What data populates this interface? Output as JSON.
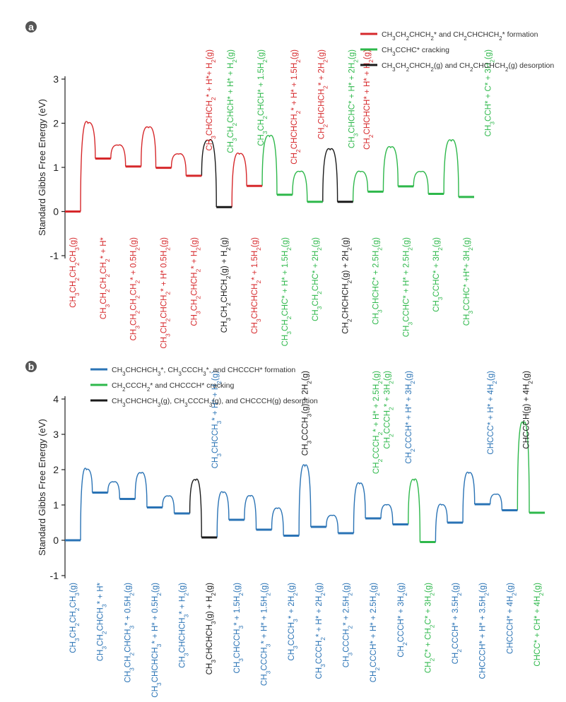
{
  "colors": {
    "red": "#d6282b",
    "green": "#2eb84b",
    "black": "#1a1a1a",
    "blue": "#2a73b5",
    "axis": "#222222"
  },
  "chart_data": [
    {
      "type": "line",
      "panel_label": "a",
      "ylabel": "Standard Gibbs Free Energy (eV)",
      "ylim": [
        -1,
        3
      ],
      "yticks": [
        "-1",
        "0",
        "1",
        "2",
        "3"
      ],
      "legend_position": "top-right",
      "legend": [
        {
          "label": "CH3CH2CHCH2* and CH2CHCHCH2* formation",
          "color": "red"
        },
        {
          "label": "CH3CCHC* cracking",
          "color": "green"
        },
        {
          "label": "CH3CH2CHCH2(g) and CH2CHCHCH2(g) desorption",
          "color": "black"
        }
      ],
      "states": [
        {
          "label": "CH3CH2CH2CH3(g)",
          "energy": 0.0,
          "color": "red"
        },
        {
          "label": "CH3CH2CH2CH2* + H*",
          "energy": 1.2,
          "color": "red"
        },
        {
          "label": "CH3CH2CH2CH2* + 0.5H2(g)",
          "energy": 1.02,
          "color": "red"
        },
        {
          "label": "CH3CH2CHCH2* + H* 0.5H2(g)",
          "energy": 0.99,
          "color": "red"
        },
        {
          "label": "CH3CH2CHCH2* + H2(g)",
          "energy": 0.81,
          "color": "red"
        },
        {
          "label": "CH3CH2CHCH2(g) + H2(g)",
          "energy": 0.1,
          "color": "black"
        },
        {
          "label": "CH3CHCHCH2* + 1.5H2(g)",
          "energy": 0.58,
          "color": "red"
        },
        {
          "label": "CH3CH2CHC* + H* + 1.5H2(g)",
          "energy": 0.38,
          "color": "green"
        },
        {
          "label": "CH3CH2CHC* + 2H2(g)",
          "energy": 0.22,
          "color": "green"
        },
        {
          "label": "CH2CHCHCH2(g) + 2H2(g)",
          "energy": 0.22,
          "color": "black"
        },
        {
          "label": "CH3CHCHC* + 2.5H2(g)",
          "energy": 0.45,
          "color": "green"
        },
        {
          "label": "CH3CCHC* + H* + 2.5H2(g)",
          "energy": 0.57,
          "color": "green"
        },
        {
          "label": "CH3CCHC* + 3H2(g)",
          "energy": 0.4,
          "color": "green"
        },
        {
          "label": "CH3CCHC* +H*+ 3H2(g)",
          "energy": 0.33,
          "color": "green"
        }
      ],
      "annotations": [
        {
          "text": "CH3CHCHCH2* + H*+ H2(g)",
          "color": "red"
        },
        {
          "text": "CH3CH2CHCH* + H* + H2(g)",
          "color": "green"
        },
        {
          "text": "CH3CH2CHCH* + 1.5H2(g)",
          "color": "green"
        },
        {
          "text": "CH2CHCHCH2* + H* + 1.5H2(g)",
          "color": "red"
        },
        {
          "text": "CH2CHCHCH2* + 2H2(g)",
          "color": "red"
        },
        {
          "text": "CH3CHCHC* + H* + 2H2(g)",
          "color": "green"
        },
        {
          "text": "CH2CHCHCH* + H* + H2(g)",
          "color": "red"
        },
        {
          "text": "CH3CCH* + C* + 3H2(g)",
          "color": "green"
        }
      ]
    },
    {
      "type": "line",
      "panel_label": "b",
      "ylabel": "Standard Gibbs Free Energy (eV)",
      "ylim": [
        -1,
        4
      ],
      "yticks": [
        "-1",
        "0",
        "1",
        "2",
        "3",
        "4"
      ],
      "legend_position": "top-left",
      "legend": [
        {
          "label": "CH3CHCHCH3*, CH3CCCH3*, and CHCCCH* formation",
          "color": "blue"
        },
        {
          "label": "CH2CCCH2* and CHCCCH* cracking",
          "color": "green"
        },
        {
          "label": "CH3CHCHCH3(g), CH3CCCH3(g), and CHCCCH(g) desorption",
          "color": "black"
        }
      ],
      "states": [
        {
          "label": "CH3CH2CH2CH3(g)",
          "energy": 0.0,
          "color": "blue"
        },
        {
          "label": "CH3CH2CHCH3* + H*",
          "energy": 1.35,
          "color": "blue"
        },
        {
          "label": "CH3CH2CHCH3* + 0.5H2(g)",
          "energy": 1.17,
          "color": "blue"
        },
        {
          "label": "CH3CHCHCH3* + H* + 0.5H2(g)",
          "energy": 0.93,
          "color": "blue"
        },
        {
          "label": "CH3CHCHCH3* + H2(g)",
          "energy": 0.76,
          "color": "blue"
        },
        {
          "label": "CH3CHCHCH3(g) + H2(g)",
          "energy": 0.08,
          "color": "black"
        },
        {
          "label": "CH3CHCCH3* + 1.5H2(g)",
          "energy": 0.58,
          "color": "blue"
        },
        {
          "label": "CH3CCCH3* + H* + 1.5H2(g)",
          "energy": 0.3,
          "color": "blue"
        },
        {
          "label": "CH3CCCH3* + 2H2(g)",
          "energy": 0.13,
          "color": "blue"
        },
        {
          "label": "CH3CCCH2* + H* + 2H2(g)",
          "energy": 0.38,
          "color": "blue"
        },
        {
          "label": "CH3CCCH2* + 2.5H2(g)",
          "energy": 0.2,
          "color": "blue"
        },
        {
          "label": "CH2CCCH* + H* + 2.5H2(g)",
          "energy": 0.62,
          "color": "blue"
        },
        {
          "label": "CH2CCCH* + 3H2(g)",
          "energy": 0.45,
          "color": "blue"
        },
        {
          "label": "CH2C* + CH2C* + 3H2(g)",
          "energy": -0.05,
          "color": "green"
        },
        {
          "label": "CH2CCCH* + 3.5H2(g)",
          "energy": 0.5,
          "color": "blue"
        },
        {
          "label": "CHCCCH* + H* + 3.5H2(g)",
          "energy": 1.02,
          "color": "blue"
        },
        {
          "label": "CHCCCH* + 4H2(g)",
          "energy": 0.85,
          "color": "blue"
        },
        {
          "label": "CHCC* + CH* + 4H2(g)",
          "energy": 0.78,
          "color": "green"
        }
      ],
      "annotations": [
        {
          "text": "CH3CHCCH3* + H* + H2(g)",
          "color": "blue"
        },
        {
          "text": "CH3CCCH3(g) + 2H2(g)",
          "color": "black"
        },
        {
          "text": "CH2CCCH2* + H* + 2.5H2(g)",
          "color": "green"
        },
        {
          "text": "CH2CCCH2* + 3H2(g)",
          "color": "green"
        },
        {
          "text": "CH2CCCH* + H* + 3H2(g)",
          "color": "blue"
        },
        {
          "text": "CHCCC* + H* + 4H2(g)",
          "color": "blue"
        },
        {
          "text": "CHCCCH(g) + 4H2(g)",
          "color": "black"
        }
      ]
    }
  ]
}
